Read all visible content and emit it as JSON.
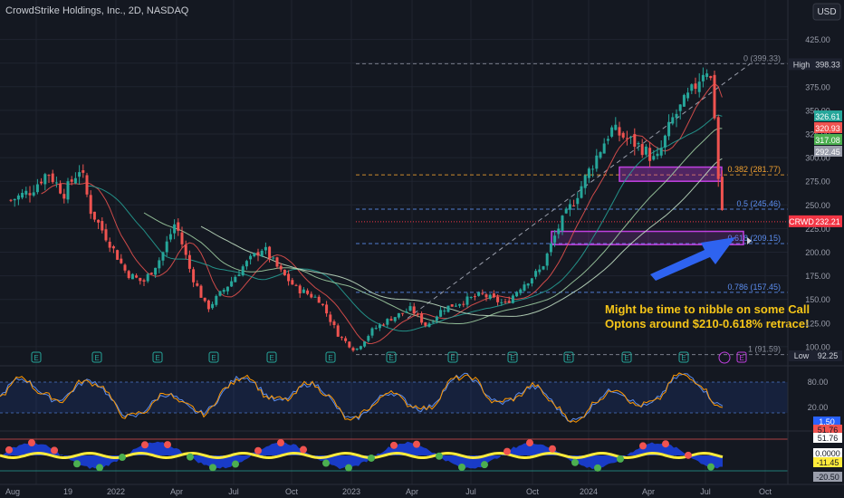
{
  "header": {
    "title": "CrowdStrike Holdings, Inc., 2D, NASDAQ",
    "currency": "USD"
  },
  "price_axis": {
    "ticks": [
      425,
      400,
      375,
      350,
      325,
      300,
      275,
      250,
      225,
      200,
      175,
      150,
      125,
      100
    ]
  },
  "badges": {
    "high_label": "High",
    "high_value": "398.33",
    "ma1": "326.61",
    "ma2": "320.93",
    "ma3": "317.08",
    "ma4": "292.45",
    "ticker": "CRWD",
    "last": "232.21",
    "low_label": "Low",
    "low_value": "92.25"
  },
  "fib": {
    "levels": [
      {
        "label": "0 (399.33)",
        "price": 399.33
      },
      {
        "label": "0.382 (281.77)",
        "price": 281.77
      },
      {
        "label": "0.5 (245.46)",
        "price": 245.46
      },
      {
        "label": "0.618 (209.15)",
        "price": 209.15
      },
      {
        "label": "0.786 (157.45)",
        "price": 157.45
      },
      {
        "label": "1 (91.59)",
        "price": 91.59
      }
    ]
  },
  "annotation": {
    "line1": "Might be time to nibble on some Call",
    "line2": "Optons around $210-0.618% retrace!"
  },
  "stoch_axis": {
    "ticks": [
      "80.00",
      "20.00"
    ],
    "value": "1.50"
  },
  "osc_axis": {
    "v1": "51.76",
    "v2": "51.76",
    "v3": "0.0000",
    "v4": "-11.45",
    "v5": "-20.50"
  },
  "time_axis": {
    "labels": [
      "Aug",
      "19",
      "2022",
      "Apr",
      "Jul",
      "Oct",
      "2023",
      "Apr",
      "Jul",
      "Oct",
      "2024",
      "Apr",
      "Jul",
      "Oct"
    ]
  },
  "earnings_marker": "E",
  "colors": {
    "up": "#26a69a",
    "down": "#ef5350",
    "fib_orange": "#f0a030",
    "fib_blue": "#5b8def",
    "zone": "#c040e0",
    "annotation": "#f5c518"
  },
  "chart_data": {
    "type": "candlestick",
    "title": "CrowdStrike Holdings, Inc., 2D, NASDAQ",
    "x_range": [
      "2021-07",
      "2024-10"
    ],
    "ylim": [
      90,
      430
    ],
    "scale": "linear",
    "grid": true,
    "price_path": [
      {
        "date": "2021-07-20",
        "close": 255
      },
      {
        "date": "2021-08-20",
        "close": 265
      },
      {
        "date": "2021-09-15",
        "close": 285
      },
      {
        "date": "2021-10-10",
        "close": 262
      },
      {
        "date": "2021-11-05",
        "close": 290
      },
      {
        "date": "2021-11-20",
        "close": 245
      },
      {
        "date": "2021-12-20",
        "close": 210
      },
      {
        "date": "2022-01-15",
        "close": 178
      },
      {
        "date": "2022-02-10",
        "close": 168
      },
      {
        "date": "2022-03-10",
        "close": 195
      },
      {
        "date": "2022-04-01",
        "close": 232
      },
      {
        "date": "2022-04-25",
        "close": 178
      },
      {
        "date": "2022-05-20",
        "close": 140
      },
      {
        "date": "2022-06-25",
        "close": 168
      },
      {
        "date": "2022-07-15",
        "close": 185
      },
      {
        "date": "2022-08-15",
        "close": 205
      },
      {
        "date": "2022-09-10",
        "close": 180
      },
      {
        "date": "2022-10-05",
        "close": 162
      },
      {
        "date": "2022-11-10",
        "close": 150
      },
      {
        "date": "2022-12-10",
        "close": 112
      },
      {
        "date": "2023-01-05",
        "close": 96
      },
      {
        "date": "2023-02-01",
        "close": 118
      },
      {
        "date": "2023-03-01",
        "close": 130
      },
      {
        "date": "2023-04-01",
        "close": 140
      },
      {
        "date": "2023-04-25",
        "close": 122
      },
      {
        "date": "2023-05-20",
        "close": 140
      },
      {
        "date": "2023-06-20",
        "close": 148
      },
      {
        "date": "2023-07-20",
        "close": 155
      },
      {
        "date": "2023-08-25",
        "close": 145
      },
      {
        "date": "2023-09-20",
        "close": 165
      },
      {
        "date": "2023-10-20",
        "close": 182
      },
      {
        "date": "2023-11-15",
        "close": 225
      },
      {
        "date": "2023-12-10",
        "close": 255
      },
      {
        "date": "2024-01-05",
        "close": 290
      },
      {
        "date": "2024-02-05",
        "close": 330
      },
      {
        "date": "2024-03-01",
        "close": 320
      },
      {
        "date": "2024-03-25",
        "close": 310
      },
      {
        "date": "2024-04-15",
        "close": 295
      },
      {
        "date": "2024-05-10",
        "close": 340
      },
      {
        "date": "2024-06-10",
        "close": 370
      },
      {
        "date": "2024-07-01",
        "close": 398
      },
      {
        "date": "2024-07-12",
        "close": 375
      },
      {
        "date": "2024-07-22",
        "close": 260
      },
      {
        "date": "2024-07-30",
        "close": 232.21
      }
    ],
    "annotations": [
      "Might be time to nibble on some Call Optons around $210-0.618% retrace!"
    ]
  }
}
